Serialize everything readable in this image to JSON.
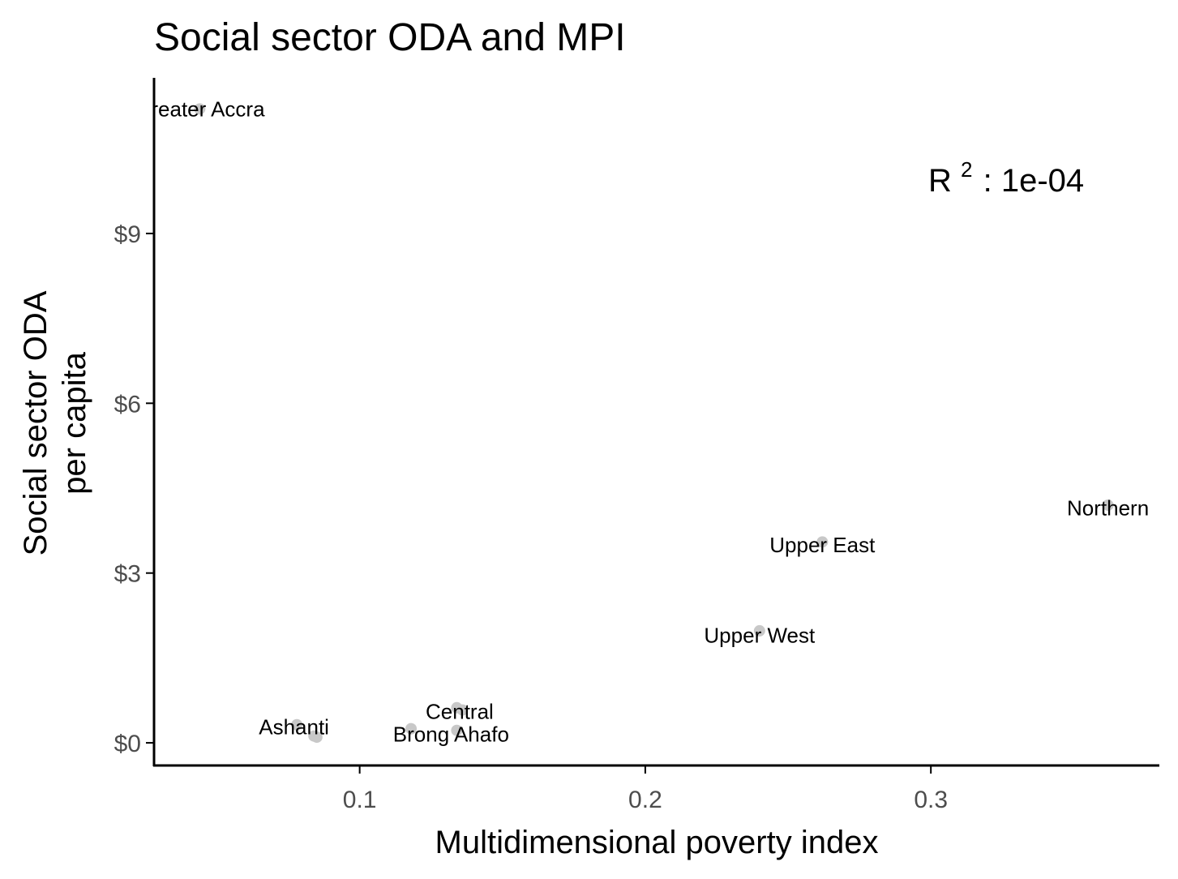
{
  "chart_data": {
    "type": "scatter",
    "title": "Social sector ODA and MPI",
    "xlabel": "Multidimensional poverty index",
    "ylabel_lines": [
      "Social sector ODA",
      "per capita"
    ],
    "xlim": [
      0.028,
      0.38
    ],
    "ylim": [
      -0.4,
      11.75
    ],
    "x_ticks": [
      0.1,
      0.2,
      0.3
    ],
    "x_tick_labels": [
      "0.1",
      "0.2",
      "0.3"
    ],
    "y_ticks": [
      0,
      3,
      6,
      9
    ],
    "y_tick_labels": [
      "$0",
      "$3",
      "$6",
      "$9"
    ],
    "grid": false,
    "point_color": "#c8c8c8",
    "annotation": {
      "base": "R",
      "superscript": "2",
      "text": ": 1e-04"
    },
    "points": [
      {
        "x": 0.044,
        "y": 11.2
      },
      {
        "x": 0.362,
        "y": 4.2
      },
      {
        "x": 0.262,
        "y": 3.55
      },
      {
        "x": 0.24,
        "y": 1.98
      },
      {
        "x": 0.134,
        "y": 0.62
      },
      {
        "x": 0.136,
        "y": 0.58
      },
      {
        "x": 0.078,
        "y": 0.32
      },
      {
        "x": 0.084,
        "y": 0.12
      },
      {
        "x": 0.085,
        "y": 0.1
      },
      {
        "x": 0.118,
        "y": 0.25
      },
      {
        "x": 0.134,
        "y": 0.22
      }
    ],
    "labels": [
      {
        "text": "Greater Accra",
        "x": 0.044,
        "y": 11.2
      },
      {
        "text": "Northern",
        "x": 0.362,
        "y": 4.15
      },
      {
        "text": "Upper East",
        "x": 0.262,
        "y": 3.5
      },
      {
        "text": "Upper West",
        "x": 0.24,
        "y": 1.9
      },
      {
        "text": "Central",
        "x": 0.135,
        "y": 0.55
      },
      {
        "text": "Ashanti",
        "x": 0.077,
        "y": 0.28
      },
      {
        "text": "Brong Ahafo",
        "x": 0.132,
        "y": 0.15
      }
    ]
  }
}
